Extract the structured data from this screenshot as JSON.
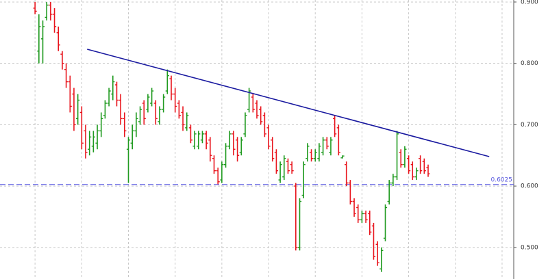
{
  "chart_data": {
    "type": "ohlc",
    "xlim": [
      -9,
      123
    ],
    "ylim": [
      0.4485,
      0.9033
    ],
    "xticks": [
      0,
      12,
      24,
      36,
      48,
      60,
      72,
      84,
      96,
      108,
      120
    ],
    "yticks": [
      {
        "value": 0.5,
        "label": "0.500"
      },
      {
        "value": 0.6,
        "label": "0.600"
      },
      {
        "value": 0.7,
        "label": "0.700"
      },
      {
        "value": 0.8,
        "label": "0.800"
      },
      {
        "value": 0.9,
        "label": "0.900"
      }
    ],
    "grid": true,
    "up_color": "#1f9a1f",
    "down_color": "#e8141c",
    "high": [
      0.9,
      0.88,
      0.87,
      0.9,
      0.9,
      0.89,
      0.86,
      0.82,
      0.8,
      0.78,
      0.76,
      0.75,
      0.73,
      0.7,
      0.69,
      0.69,
      0.7,
      0.72,
      0.74,
      0.76,
      0.78,
      0.77,
      0.75,
      0.72,
      0.68,
      0.7,
      0.72,
      0.73,
      0.74,
      0.75,
      0.76,
      0.74,
      0.73,
      0.75,
      0.79,
      0.78,
      0.76,
      0.74,
      0.73,
      0.72,
      0.7,
      0.69,
      0.69,
      0.69,
      0.69,
      0.68,
      0.65,
      0.63,
      0.64,
      0.67,
      0.69,
      0.69,
      0.68,
      0.68,
      0.72,
      0.76,
      0.75,
      0.74,
      0.73,
      0.72,
      0.7,
      0.68,
      0.66,
      0.64,
      0.65,
      0.645,
      0.64,
      0.605,
      0.58,
      0.64,
      0.67,
      0.66,
      0.66,
      0.67,
      0.68,
      0.68,
      0.68,
      0.715,
      0.7,
      0.65,
      0.64,
      0.61,
      0.58,
      0.57,
      0.56,
      0.56,
      0.56,
      0.54,
      0.51,
      0.5,
      0.57,
      0.61,
      0.62,
      0.69,
      0.66,
      0.665,
      0.65,
      0.64,
      0.63,
      0.65,
      0.645,
      0.635
    ],
    "low": [
      0.88,
      0.8,
      0.8,
      0.87,
      0.87,
      0.85,
      0.82,
      0.79,
      0.76,
      0.72,
      0.69,
      0.7,
      0.66,
      0.645,
      0.65,
      0.655,
      0.66,
      0.68,
      0.71,
      0.73,
      0.74,
      0.73,
      0.7,
      0.68,
      0.605,
      0.66,
      0.68,
      0.7,
      0.7,
      0.72,
      0.73,
      0.7,
      0.7,
      0.72,
      0.75,
      0.74,
      0.72,
      0.71,
      0.69,
      0.69,
      0.67,
      0.66,
      0.66,
      0.67,
      0.66,
      0.64,
      0.62,
      0.603,
      0.605,
      0.63,
      0.66,
      0.65,
      0.64,
      0.65,
      0.68,
      0.72,
      0.72,
      0.71,
      0.7,
      0.68,
      0.66,
      0.64,
      0.62,
      0.605,
      0.61,
      0.62,
      0.62,
      0.495,
      0.495,
      0.58,
      0.64,
      0.64,
      0.64,
      0.64,
      0.65,
      0.66,
      0.65,
      0.68,
      0.65,
      0.645,
      0.6,
      0.57,
      0.55,
      0.54,
      0.54,
      0.54,
      0.52,
      0.48,
      0.47,
      0.46,
      0.51,
      0.57,
      0.6,
      0.61,
      0.63,
      0.63,
      0.62,
      0.61,
      0.61,
      0.62,
      0.62,
      0.615
    ],
    "open": [
      0.89,
      0.82,
      0.84,
      0.875,
      0.895,
      0.88,
      0.85,
      0.815,
      0.79,
      0.77,
      0.75,
      0.71,
      0.72,
      0.69,
      0.66,
      0.665,
      0.67,
      0.69,
      0.715,
      0.735,
      0.75,
      0.765,
      0.74,
      0.71,
      0.66,
      0.67,
      0.69,
      0.705,
      0.735,
      0.725,
      0.735,
      0.735,
      0.705,
      0.725,
      0.755,
      0.775,
      0.75,
      0.735,
      0.72,
      0.695,
      0.695,
      0.665,
      0.665,
      0.675,
      0.685,
      0.675,
      0.645,
      0.625,
      0.61,
      0.635,
      0.665,
      0.685,
      0.675,
      0.655,
      0.685,
      0.725,
      0.745,
      0.735,
      0.725,
      0.715,
      0.695,
      0.675,
      0.655,
      0.61,
      0.615,
      0.64,
      0.635,
      0.6,
      0.5,
      0.585,
      0.645,
      0.655,
      0.645,
      0.645,
      0.655,
      0.675,
      0.655,
      0.71,
      0.695,
      0.646,
      0.635,
      0.605,
      0.575,
      0.565,
      0.545,
      0.555,
      0.555,
      0.535,
      0.505,
      0.465,
      0.515,
      0.575,
      0.605,
      0.615,
      0.655,
      0.635,
      0.645,
      0.635,
      0.615,
      0.645,
      0.64,
      0.63
    ],
    "close": [
      0.885,
      0.86,
      0.86,
      0.895,
      0.88,
      0.86,
      0.83,
      0.8,
      0.77,
      0.73,
      0.7,
      0.74,
      0.67,
      0.655,
      0.68,
      0.68,
      0.69,
      0.71,
      0.735,
      0.755,
      0.77,
      0.74,
      0.71,
      0.69,
      0.675,
      0.69,
      0.71,
      0.725,
      0.71,
      0.745,
      0.755,
      0.71,
      0.725,
      0.745,
      0.78,
      0.75,
      0.73,
      0.715,
      0.7,
      0.715,
      0.675,
      0.685,
      0.685,
      0.685,
      0.67,
      0.65,
      0.625,
      0.607,
      0.635,
      0.665,
      0.685,
      0.66,
      0.65,
      0.675,
      0.715,
      0.755,
      0.725,
      0.715,
      0.705,
      0.685,
      0.665,
      0.645,
      0.625,
      0.635,
      0.645,
      0.625,
      0.625,
      0.5,
      0.575,
      0.635,
      0.665,
      0.645,
      0.655,
      0.665,
      0.675,
      0.665,
      0.675,
      0.685,
      0.655,
      0.649,
      0.605,
      0.575,
      0.555,
      0.545,
      0.555,
      0.545,
      0.525,
      0.485,
      0.475,
      0.495,
      0.565,
      0.605,
      0.615,
      0.685,
      0.635,
      0.66,
      0.625,
      0.615,
      0.625,
      0.625,
      0.625,
      0.62
    ],
    "trendline": {
      "x": [
        13.4,
        116.7
      ],
      "y": [
        0.823,
        0.648
      ],
      "color": "#1a1aa0"
    },
    "hline": {
      "value": 0.6025,
      "color": "#5a5ae0"
    }
  }
}
